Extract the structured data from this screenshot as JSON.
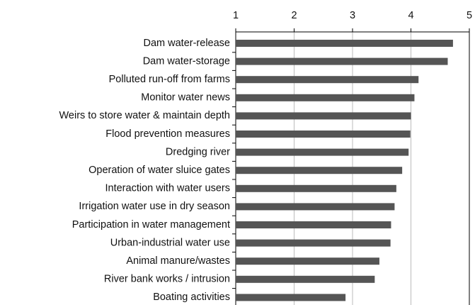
{
  "chart_data": {
    "type": "barh",
    "categories": [
      "Dam water-release",
      "Dam water-storage",
      "Polluted run-off from farms",
      "Monitor water news",
      "Weirs to store water & maintain depth",
      "Flood prevention measures",
      "Dredging river",
      "Operation of water sluice gates",
      "Interaction with water users",
      "Irrigation water use in dry season",
      "Participation in water management",
      "Urban-industrial water use",
      "Animal manure/wastes",
      "River bank works / intrusion",
      "Boating activities"
    ],
    "values": [
      4.72,
      4.63,
      4.13,
      4.06,
      4.0,
      3.99,
      3.96,
      3.85,
      3.75,
      3.72,
      3.66,
      3.65,
      3.46,
      3.38,
      2.88
    ],
    "color": "#555555",
    "xlim": [
      1,
      5
    ],
    "xticks": [
      1,
      2,
      3,
      4,
      5
    ],
    "grid": true
  }
}
